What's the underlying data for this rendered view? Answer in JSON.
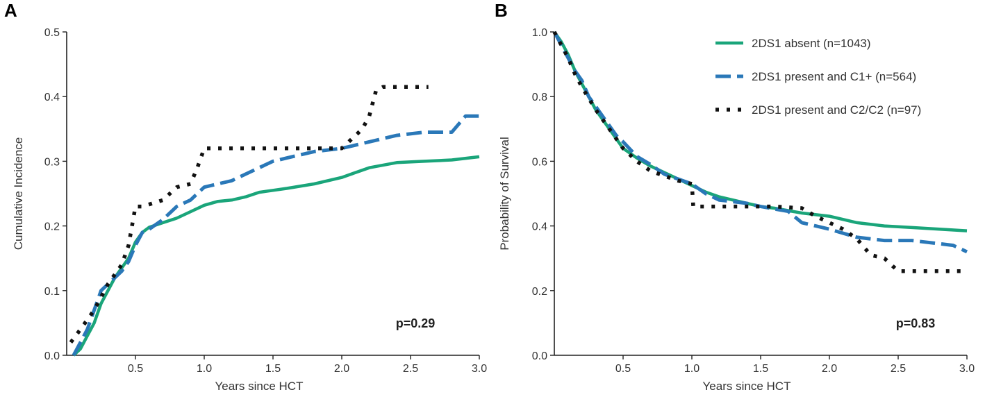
{
  "chart_data": [
    {
      "type": "line",
      "panel": "A",
      "xlabel": "Years since HCT",
      "ylabel": "Cumulative Incidence",
      "xlim": [
        0,
        3.0
      ],
      "ylim": [
        0,
        0.5
      ],
      "xticks": [
        "0.5",
        "1.0",
        "1.5",
        "2.0",
        "2.5",
        "3.0"
      ],
      "yticks": [
        "0.0",
        "0.1",
        "0.2",
        "0.3",
        "0.4",
        "0.5"
      ],
      "annotation": "p=0.29",
      "series": [
        {
          "name": "2DS1 absent (n=1043)",
          "style": "solid",
          "color": "#1aa57a",
          "x": [
            0.05,
            0.1,
            0.15,
            0.2,
            0.25,
            0.3,
            0.35,
            0.4,
            0.45,
            0.5,
            0.55,
            0.6,
            0.7,
            0.8,
            0.9,
            1.0,
            1.1,
            1.2,
            1.3,
            1.4,
            1.5,
            1.6,
            1.8,
            2.0,
            2.2,
            2.4,
            2.6,
            2.8,
            3.0
          ],
          "y": [
            0.0,
            0.01,
            0.03,
            0.05,
            0.08,
            0.1,
            0.12,
            0.135,
            0.15,
            0.175,
            0.19,
            0.198,
            0.205,
            0.212,
            0.222,
            0.232,
            0.238,
            0.24,
            0.245,
            0.252,
            0.255,
            0.258,
            0.265,
            0.275,
            0.29,
            0.298,
            0.3,
            0.302,
            0.307
          ]
        },
        {
          "name": "2DS1 present and C1+ (n=564)",
          "style": "dashed",
          "color": "#2a78b8",
          "x": [
            0.05,
            0.1,
            0.15,
            0.2,
            0.25,
            0.3,
            0.35,
            0.4,
            0.45,
            0.5,
            0.55,
            0.6,
            0.7,
            0.8,
            0.9,
            1.0,
            1.1,
            1.2,
            1.3,
            1.4,
            1.5,
            1.6,
            1.8,
            2.0,
            2.2,
            2.4,
            2.6,
            2.8,
            2.9,
            3.0
          ],
          "y": [
            0.0,
            0.02,
            0.04,
            0.07,
            0.1,
            0.11,
            0.12,
            0.13,
            0.145,
            0.17,
            0.19,
            0.195,
            0.21,
            0.23,
            0.24,
            0.26,
            0.265,
            0.27,
            0.28,
            0.29,
            0.3,
            0.305,
            0.315,
            0.32,
            0.33,
            0.34,
            0.345,
            0.345,
            0.37,
            0.37
          ]
        },
        {
          "name": "2DS1 present and C2/C2 (n=97)",
          "style": "dotted",
          "color": "#111111",
          "x": [
            0.03,
            0.1,
            0.2,
            0.3,
            0.4,
            0.45,
            0.5,
            0.55,
            0.7,
            0.8,
            0.9,
            0.95,
            1.0,
            1.05,
            1.5,
            2.0,
            2.15,
            2.2,
            2.25,
            2.3,
            2.63
          ],
          "y": [
            0.02,
            0.04,
            0.07,
            0.11,
            0.14,
            0.17,
            0.23,
            0.23,
            0.24,
            0.26,
            0.265,
            0.29,
            0.32,
            0.32,
            0.32,
            0.32,
            0.35,
            0.37,
            0.41,
            0.415,
            0.415
          ]
        }
      ]
    },
    {
      "type": "line",
      "panel": "B",
      "xlabel": "Years since HCT",
      "ylabel": "Probability of Survival",
      "xlim": [
        0,
        3.0
      ],
      "ylim": [
        0,
        1.0
      ],
      "xticks": [
        "0.5",
        "1.0",
        "1.5",
        "2.0",
        "2.5",
        "3.0"
      ],
      "yticks": [
        "0.0",
        "0.2",
        "0.4",
        "0.6",
        "0.8",
        "1.0"
      ],
      "annotation": "p=0.83",
      "legend": [
        "2DS1 absent (n=1043)",
        "2DS1 present and C1+ (n=564)",
        "2DS1 present and C2/C2 (n=97)"
      ],
      "legend_position": "top-right",
      "series": [
        {
          "name": "2DS1 absent (n=1043)",
          "style": "solid",
          "color": "#1aa57a",
          "x": [
            0,
            0.05,
            0.1,
            0.15,
            0.2,
            0.25,
            0.3,
            0.35,
            0.4,
            0.45,
            0.5,
            0.6,
            0.7,
            0.8,
            0.9,
            1.0,
            1.1,
            1.2,
            1.3,
            1.4,
            1.5,
            1.6,
            1.8,
            2.0,
            2.2,
            2.4,
            2.6,
            2.8,
            3.0
          ],
          "y": [
            1.0,
            0.97,
            0.93,
            0.88,
            0.84,
            0.8,
            0.76,
            0.73,
            0.7,
            0.67,
            0.64,
            0.61,
            0.585,
            0.565,
            0.545,
            0.525,
            0.505,
            0.49,
            0.48,
            0.47,
            0.46,
            0.455,
            0.44,
            0.43,
            0.41,
            0.4,
            0.395,
            0.39,
            0.385
          ]
        },
        {
          "name": "2DS1 present and C1+ (n=564)",
          "style": "dashed",
          "color": "#2a78b8",
          "x": [
            0,
            0.05,
            0.1,
            0.15,
            0.2,
            0.25,
            0.3,
            0.35,
            0.4,
            0.45,
            0.5,
            0.6,
            0.7,
            0.8,
            0.9,
            1.0,
            1.1,
            1.2,
            1.3,
            1.4,
            1.5,
            1.7,
            1.8,
            1.9,
            2.0,
            2.2,
            2.4,
            2.6,
            2.8,
            2.9,
            3.0
          ],
          "y": [
            1.0,
            0.96,
            0.92,
            0.88,
            0.85,
            0.8,
            0.77,
            0.74,
            0.71,
            0.68,
            0.66,
            0.615,
            0.59,
            0.56,
            0.545,
            0.53,
            0.5,
            0.48,
            0.475,
            0.47,
            0.46,
            0.445,
            0.41,
            0.4,
            0.39,
            0.365,
            0.355,
            0.355,
            0.345,
            0.34,
            0.32
          ]
        },
        {
          "name": "2DS1 present and C2/C2 (n=97)",
          "style": "dotted",
          "color": "#111111",
          "x": [
            0,
            0.05,
            0.1,
            0.15,
            0.2,
            0.3,
            0.4,
            0.5,
            0.6,
            0.7,
            0.8,
            0.9,
            1.0,
            1.01,
            1.3,
            1.5,
            1.6,
            1.8,
            1.9,
            2.0,
            2.1,
            2.2,
            2.3,
            2.4,
            2.5,
            3.0
          ],
          "y": [
            1.0,
            0.96,
            0.92,
            0.87,
            0.83,
            0.76,
            0.7,
            0.64,
            0.6,
            0.57,
            0.555,
            0.54,
            0.53,
            0.46,
            0.46,
            0.46,
            0.46,
            0.455,
            0.43,
            0.41,
            0.39,
            0.36,
            0.31,
            0.3,
            0.26,
            0.26
          ]
        }
      ]
    }
  ]
}
